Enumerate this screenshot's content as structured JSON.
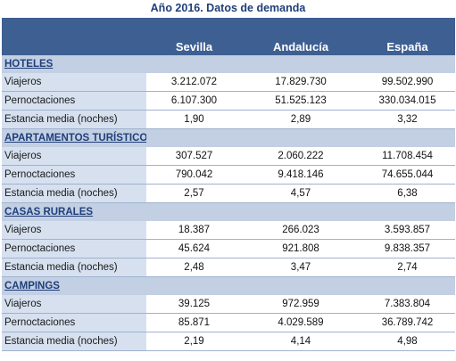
{
  "title": "Año 2016. Datos de demanda",
  "columns": [
    "Sevilla",
    "Andalucía",
    "España"
  ],
  "sections": [
    {
      "name": "HOTELES",
      "rows": [
        {
          "label": "Viajeros",
          "values": [
            "3.212.072",
            "17.829.730",
            "99.502.990"
          ]
        },
        {
          "label": "Pernoctaciones",
          "values": [
            "6.107.300",
            "51.525.123",
            "330.034.015"
          ]
        },
        {
          "label": "Estancia media (noches)",
          "values": [
            "1,90",
            "2,89",
            "3,32"
          ]
        }
      ]
    },
    {
      "name": "APARTAMENTOS TURÍSTICOS",
      "rows": [
        {
          "label": "Viajeros",
          "values": [
            "307.527",
            "2.060.222",
            "11.708.454"
          ]
        },
        {
          "label": "Pernoctaciones",
          "values": [
            "790.042",
            "9.418.146",
            "74.655.044"
          ]
        },
        {
          "label": "Estancia media (noches)",
          "values": [
            "2,57",
            "4,57",
            "6,38"
          ]
        }
      ]
    },
    {
      "name": "CASAS RURALES",
      "rows": [
        {
          "label": "Viajeros",
          "values": [
            "18.387",
            "266.023",
            "3.593.857"
          ]
        },
        {
          "label": "Pernoctaciones",
          "values": [
            "45.624",
            "921.808",
            "9.838.357"
          ]
        },
        {
          "label": "Estancia media (noches)",
          "values": [
            "2,48",
            "3,47",
            "2,74"
          ]
        }
      ]
    },
    {
      "name": "CAMPINGS",
      "rows": [
        {
          "label": "Viajeros",
          "values": [
            "39.125",
            "972.959",
            "7.383.804"
          ]
        },
        {
          "label": "Pernoctaciones",
          "values": [
            "85.871",
            "4.029.589",
            "36.789.742"
          ]
        },
        {
          "label": "Estancia media (noches)",
          "values": [
            "2,19",
            "4,14",
            "4,98"
          ]
        }
      ]
    }
  ],
  "colors": {
    "header_bg": "#3e5f92",
    "section_bg": "#c3cfe3",
    "label_bg": "#d6e0ef",
    "title_text": "#1f3f7a"
  }
}
